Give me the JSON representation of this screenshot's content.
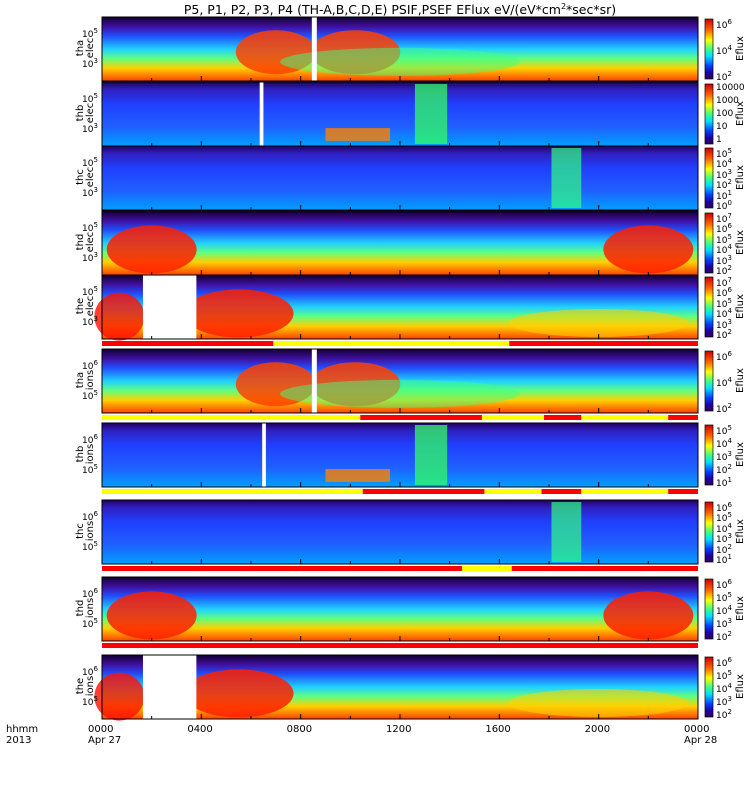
{
  "title": "P5, P1, P2, P3, P4  (TH-A,B,C,D,E) PSIF,PSEF EFlux eV/(eV*cm^2*sec*sr)",
  "chart_data": {
    "type": "heatmap",
    "colorbar_label": "Eflux",
    "xaxis": {
      "row1": [
        "0000",
        "0400",
        "0800",
        "1200",
        "1600",
        "2000",
        "0000"
      ],
      "row2_left": "Apr 27",
      "row2_right": "Apr 28",
      "caption_row1": "hhmm",
      "caption_row2": "2013",
      "range_hours": [
        0,
        24
      ]
    },
    "panels": [
      {
        "id": "tha-elec",
        "ylabel_top": "tha",
        "ylabel_bot": "elec",
        "yticks": [
          "10^5",
          "10^3"
        ],
        "cbar_ticks": [
          "10^6",
          "10^4",
          "10^2"
        ],
        "gaps_hours": [
          [
            8.45,
            8.65
          ]
        ],
        "mode_bar": false
      },
      {
        "id": "thb-elec",
        "ylabel_top": "thb",
        "ylabel_bot": "elec",
        "yticks": [
          "10^5",
          "10^3"
        ],
        "cbar_ticks": [
          "10000",
          "1000",
          "100",
          "10",
          "1"
        ],
        "gaps_hours": [
          [
            6.35,
            6.5
          ]
        ],
        "mode_bar": false
      },
      {
        "id": "thc-elec",
        "ylabel_top": "thc",
        "ylabel_bot": "elec",
        "yticks": [
          "10^5",
          "10^3"
        ],
        "cbar_ticks": [
          "10^5",
          "10^4",
          "10^3",
          "10^2",
          "10^1",
          "10^0"
        ],
        "gaps_hours": [],
        "mode_bar": false
      },
      {
        "id": "thd-elec",
        "ylabel_top": "thd",
        "ylabel_bot": "elec",
        "yticks": [
          "10^5",
          "10^3"
        ],
        "cbar_ticks": [
          "10^7",
          "10^6",
          "10^5",
          "10^4",
          "10^3",
          "10^2"
        ],
        "gaps_hours": [],
        "mode_bar": false
      },
      {
        "id": "the-elec",
        "ylabel_top": "the",
        "ylabel_bot": "elec",
        "yticks": [
          "10^5",
          "10^3"
        ],
        "cbar_ticks": [
          "10^7",
          "10^6",
          "10^5",
          "10^4",
          "10^3",
          "10^2"
        ],
        "gaps_hours": [
          [
            1.65,
            3.8
          ]
        ],
        "mode_bar": true,
        "mode_segments": [
          [
            0,
            6.9,
            "red"
          ],
          [
            6.9,
            16.4,
            "yellow"
          ],
          [
            16.4,
            24,
            "red"
          ]
        ]
      },
      {
        "id": "tha-ions",
        "ylabel_top": "tha",
        "ylabel_bot": "ions",
        "yticks": [
          "10^6",
          "10^5"
        ],
        "cbar_ticks": [
          "10^6",
          "10^4",
          "10^2"
        ],
        "gaps_hours": [
          [
            8.45,
            8.65
          ]
        ],
        "mode_bar": true,
        "mode_segments": [
          [
            0,
            10.4,
            "yellow"
          ],
          [
            10.4,
            15.3,
            "red"
          ],
          [
            15.3,
            17.8,
            "yellow"
          ],
          [
            17.8,
            19.3,
            "red"
          ],
          [
            19.3,
            22.8,
            "yellow"
          ],
          [
            22.8,
            24,
            "red"
          ]
        ]
      },
      {
        "id": "thb-ions",
        "ylabel_top": "thb",
        "ylabel_bot": "ions",
        "yticks": [
          "10^6",
          "10^5"
        ],
        "cbar_ticks": [
          "10^5",
          "10^4",
          "10^3",
          "10^2",
          "10^1"
        ],
        "gaps_hours": [
          [
            6.45,
            6.6
          ]
        ],
        "mode_bar": true,
        "mode_segments": [
          [
            0,
            10.5,
            "yellow"
          ],
          [
            10.5,
            15.4,
            "red"
          ],
          [
            15.4,
            17.7,
            "yellow"
          ],
          [
            17.7,
            19.3,
            "red"
          ],
          [
            19.3,
            22.8,
            "yellow"
          ],
          [
            22.8,
            24,
            "red"
          ]
        ]
      },
      {
        "id": "thc-ions",
        "ylabel_top": "thc",
        "ylabel_bot": "ions",
        "yticks": [
          "10^6",
          "10^5"
        ],
        "cbar_ticks": [
          "10^6",
          "10^5",
          "10^4",
          "10^3",
          "10^2",
          "10^1"
        ],
        "gaps_hours": [],
        "mode_bar": true,
        "mode_segments": [
          [
            0,
            14.5,
            "red"
          ],
          [
            14.5,
            16.5,
            "yellow"
          ],
          [
            16.5,
            24,
            "red"
          ]
        ]
      },
      {
        "id": "thd-ions",
        "ylabel_top": "thd",
        "ylabel_bot": "ions",
        "yticks": [
          "10^6",
          "10^5"
        ],
        "cbar_ticks": [
          "10^6",
          "10^5",
          "10^4",
          "10^3",
          "10^2"
        ],
        "gaps_hours": [],
        "mode_bar": true,
        "mode_segments": [
          [
            0,
            24,
            "red"
          ]
        ]
      },
      {
        "id": "the-ions",
        "ylabel_top": "the",
        "ylabel_bot": "ions",
        "yticks": [
          "10^6",
          "10^5"
        ],
        "cbar_ticks": [
          "10^6",
          "10^5",
          "10^4",
          "10^3",
          "10^2"
        ],
        "gaps_hours": [
          [
            1.65,
            3.8
          ]
        ],
        "mode_bar": false
      }
    ]
  }
}
